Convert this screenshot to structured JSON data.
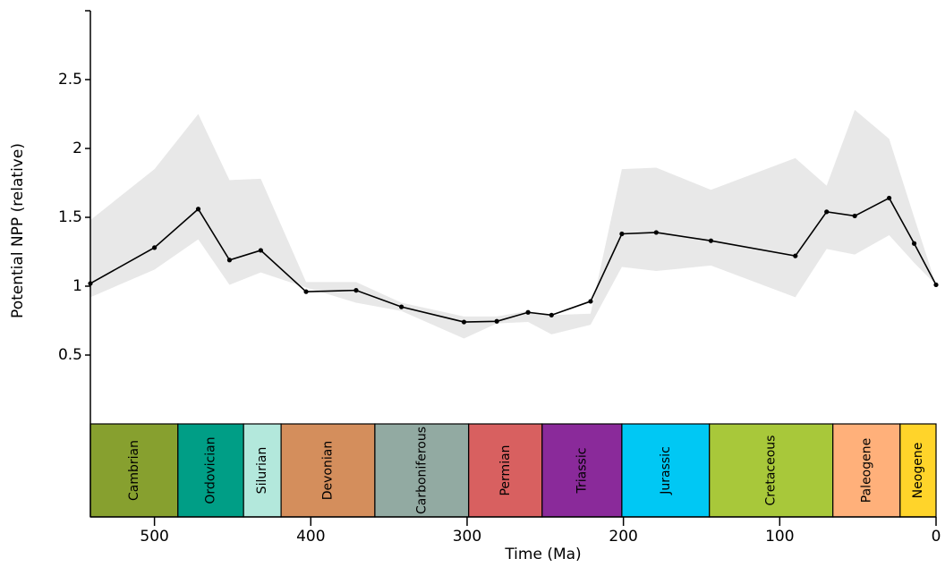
{
  "chart_data": {
    "type": "line-band",
    "x_label": "Time (Ma)",
    "y_label": "Potential NPP (relative)",
    "x": [
      541,
      500,
      472,
      452,
      432,
      403,
      371,
      342,
      302,
      281,
      261,
      246,
      221,
      201,
      179,
      144,
      90,
      70,
      52,
      30,
      14,
      0
    ],
    "values": [
      1.02,
      1.28,
      1.56,
      1.19,
      1.26,
      0.96,
      0.97,
      0.85,
      0.74,
      0.745,
      0.81,
      0.79,
      0.89,
      1.38,
      1.39,
      1.33,
      1.22,
      1.54,
      1.51,
      1.64,
      1.31,
      1.01
    ],
    "upper": [
      1.48,
      1.85,
      2.25,
      1.77,
      1.78,
      1.03,
      1.03,
      0.88,
      0.78,
      0.78,
      0.82,
      0.79,
      0.8,
      1.85,
      1.86,
      1.7,
      1.93,
      1.73,
      2.28,
      2.07,
      1.5,
      1.01
    ],
    "lower": [
      0.92,
      1.12,
      1.34,
      1.01,
      1.1,
      0.99,
      0.88,
      0.82,
      0.62,
      0.73,
      0.74,
      0.65,
      0.72,
      1.14,
      1.11,
      1.15,
      0.92,
      1.27,
      1.23,
      1.37,
      1.17,
      1.01
    ],
    "color": "#000000",
    "band_color": "#e8e8e8",
    "xlim": [
      541,
      0
    ],
    "ylim": [
      0,
      3
    ],
    "xticks": [
      500,
      400,
      300,
      200,
      100,
      0
    ],
    "yticks": [
      0.5,
      1,
      1.5,
      2,
      2.5
    ],
    "periods": [
      {
        "name": "Cambrian",
        "start": 541,
        "end": 485,
        "color": "#87a02f"
      },
      {
        "name": "Ordovician",
        "start": 485,
        "end": 443,
        "color": "#009e86"
      },
      {
        "name": "Silurian",
        "start": 443,
        "end": 419,
        "color": "#b3e8dc"
      },
      {
        "name": "Devonian",
        "start": 419,
        "end": 359,
        "color": "#d48e5c"
      },
      {
        "name": "Carboniferous",
        "start": 359,
        "end": 299,
        "color": "#92aaa2"
      },
      {
        "name": "Permian",
        "start": 299,
        "end": 252,
        "color": "#d86060"
      },
      {
        "name": "Triassic",
        "start": 252,
        "end": 201,
        "color": "#8a2a9a"
      },
      {
        "name": "Jurassic",
        "start": 201,
        "end": 145,
        "color": "#00c8f4"
      },
      {
        "name": "Cretaceous",
        "start": 145,
        "end": 66,
        "color": "#a8c83a"
      },
      {
        "name": "Paleogene",
        "start": 66,
        "end": 23,
        "color": "#ffb07a"
      },
      {
        "name": "Neogene",
        "start": 23,
        "end": 0,
        "color": "#ffd42a"
      }
    ]
  }
}
